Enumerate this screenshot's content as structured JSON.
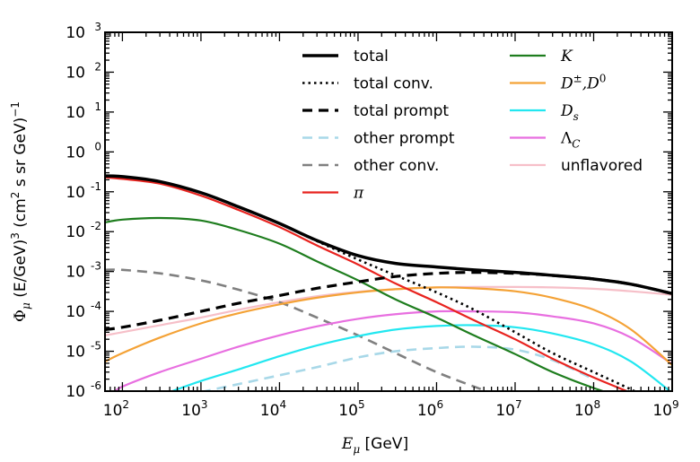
{
  "chart_data": {
    "type": "line",
    "xlabel_math": "E",
    "xlabel_math_sub": "μ",
    "xlabel_unit": " [GeV]",
    "ylabel_phi": "Φ",
    "ylabel_phi_sub": "μ",
    "ylabel_part1": " (E/GeV)",
    "ylabel_part1_sup": "3",
    "ylabel_part2": " (cm",
    "ylabel_part2_sup": "2",
    "ylabel_part3": " s sr GeV)",
    "ylabel_part3_sup": "−1",
    "x_scale": "log",
    "y_scale": "log",
    "xlim": [
      60,
      1000000000
    ],
    "ylim": [
      1e-06,
      1000
    ],
    "grid": false,
    "legend_position": "top-right, two columns",
    "x_ticks": [
      {
        "value": 100,
        "base": "10",
        "exp": "2"
      },
      {
        "value": 1000,
        "base": "10",
        "exp": "3"
      },
      {
        "value": 10000,
        "base": "10",
        "exp": "4"
      },
      {
        "value": 100000,
        "base": "10",
        "exp": "5"
      },
      {
        "value": 1000000,
        "base": "10",
        "exp": "6"
      },
      {
        "value": 10000000,
        "base": "10",
        "exp": "7"
      },
      {
        "value": 100000000,
        "base": "10",
        "exp": "8"
      },
      {
        "value": 1000000000,
        "base": "10",
        "exp": "9"
      }
    ],
    "y_ticks": [
      {
        "value": 1e-06,
        "base": "10",
        "exp": "-6"
      },
      {
        "value": 1e-05,
        "base": "10",
        "exp": "-5"
      },
      {
        "value": 0.0001,
        "base": "10",
        "exp": "-4"
      },
      {
        "value": 0.001,
        "base": "10",
        "exp": "-3"
      },
      {
        "value": 0.01,
        "base": "10",
        "exp": "-2"
      },
      {
        "value": 0.1,
        "base": "10",
        "exp": "-1"
      },
      {
        "value": 1,
        "base": "10",
        "exp": "0"
      },
      {
        "value": 10,
        "base": "10",
        "exp": "1"
      },
      {
        "value": 100,
        "base": "10",
        "exp": "2"
      },
      {
        "value": 1000,
        "base": "10",
        "exp": "3"
      }
    ],
    "series": [
      {
        "name": "total",
        "label_style": "text",
        "color": "#000000",
        "dash": "solid",
        "width": 3.5,
        "x": [
          60,
          100,
          300,
          1000,
          3000,
          10000,
          30000,
          100000,
          300000,
          1000000,
          3000000,
          10000000,
          30000000,
          100000000,
          300000000,
          1000000000
        ],
        "y": [
          0.25,
          0.24,
          0.18,
          0.095,
          0.042,
          0.016,
          0.006,
          0.0025,
          0.0016,
          0.0013,
          0.0011,
          0.00095,
          0.0008,
          0.00065,
          0.00048,
          0.00028
        ]
      },
      {
        "name": "total conv.",
        "label_style": "text",
        "color": "#000000",
        "dash": "dotted",
        "width": 2.6,
        "x": [
          10000,
          30000,
          100000,
          300000,
          1000000,
          3000000,
          10000000,
          30000000,
          100000000,
          300000000,
          600000000
        ],
        "y": [
          0.016,
          0.0058,
          0.002,
          0.0008,
          0.0003,
          0.00011,
          3e-05,
          9e-06,
          3e-06,
          1.1e-06,
          5.5e-07
        ]
      },
      {
        "name": "total prompt",
        "label_style": "text",
        "color": "#000000",
        "dash": "dashed",
        "width": 3.2,
        "x": [
          60,
          100,
          300,
          1000,
          3000,
          10000,
          30000,
          100000,
          300000,
          1000000,
          3000000,
          10000000,
          30000000,
          100000000,
          300000000,
          1000000000
        ],
        "y": [
          3.5e-05,
          4e-05,
          6e-05,
          0.0001,
          0.00016,
          0.00025,
          0.00038,
          0.00055,
          0.00075,
          0.0009,
          0.00095,
          0.0009,
          0.0008,
          0.00065,
          0.00048,
          0.00028
        ]
      },
      {
        "name": "other prompt",
        "label_style": "text",
        "color": "#a8d8e8",
        "dash": "dashed",
        "width": 2.6,
        "x": [
          1000,
          3000,
          10000,
          30000,
          100000,
          300000,
          1000000,
          3000000,
          10000000,
          30000000,
          100000000
        ],
        "y": [
          9.5e-07,
          1.5e-06,
          2.5e-06,
          4e-06,
          7e-06,
          1e-05,
          1.2e-05,
          1.3e-05,
          1.1e-05,
          6e-06,
          2e-06
        ]
      },
      {
        "name": "other conv.",
        "label_style": "text",
        "color": "#808080",
        "dash": "dashed",
        "width": 2.6,
        "x": [
          60,
          100,
          300,
          1000,
          3000,
          10000,
          30000,
          100000,
          300000,
          1000000,
          3000000,
          6000000
        ],
        "y": [
          0.0011,
          0.0011,
          0.0009,
          0.0006,
          0.00035,
          0.00017,
          7e-05,
          2.5e-05,
          9e-06,
          3e-06,
          1.3e-06,
          8e-07
        ]
      },
      {
        "name": "π",
        "label_style": "math",
        "color": "#e8231f",
        "dash": "solid",
        "width": 2.2,
        "x": [
          60,
          100,
          300,
          1000,
          3000,
          10000,
          30000,
          100000,
          300000,
          1000000,
          3000000,
          10000000,
          30000000,
          100000000,
          300000000,
          800000000
        ],
        "y": [
          0.23,
          0.21,
          0.16,
          0.08,
          0.035,
          0.013,
          0.0045,
          0.0015,
          0.0005,
          0.00017,
          6e-05,
          2e-05,
          6.5e-06,
          2.2e-06,
          9e-07,
          4e-07
        ]
      },
      {
        "name": "K",
        "label_style": "math",
        "color": "#1e7d1e",
        "dash": "solid",
        "width": 2.2,
        "x": [
          60,
          100,
          300,
          1000,
          3000,
          10000,
          30000,
          100000,
          300000,
          1000000,
          3000000,
          10000000,
          30000000,
          100000000,
          300000000
        ],
        "y": [
          0.017,
          0.02,
          0.022,
          0.019,
          0.011,
          0.005,
          0.0018,
          0.0006,
          0.0002,
          7e-05,
          2.5e-05,
          8.5e-06,
          3e-06,
          1.2e-06,
          6e-07
        ]
      },
      {
        "name": "D±,D0",
        "label_style": "math",
        "color": "#f4a236",
        "dash": "solid",
        "width": 2.2,
        "x": [
          60,
          100,
          300,
          1000,
          3000,
          10000,
          30000,
          100000,
          300000,
          1000000,
          3000000,
          10000000,
          30000000,
          100000000,
          300000000,
          1000000000
        ],
        "y": [
          5.5e-06,
          9e-06,
          2.2e-05,
          5e-05,
          9e-05,
          0.00015,
          0.00022,
          0.0003,
          0.00036,
          0.0004,
          0.00038,
          0.00032,
          0.00022,
          0.00011,
          3.5e-05,
          4.5e-06
        ]
      },
      {
        "name": "Ds",
        "label_style": "math",
        "color": "#22e7f0",
        "dash": "solid",
        "width": 2.2,
        "x": [
          400,
          1000,
          3000,
          10000,
          30000,
          100000,
          300000,
          1000000,
          3000000,
          10000000,
          30000000,
          100000000,
          300000000,
          1000000000
        ],
        "y": [
          9.5e-07,
          1.8e-06,
          3.5e-06,
          7.5e-06,
          1.4e-05,
          2.4e-05,
          3.5e-05,
          4.3e-05,
          4.5e-05,
          4e-05,
          2.8e-05,
          1.5e-05,
          5.5e-06,
          9e-07
        ]
      },
      {
        "name": "ΛC",
        "label_style": "math",
        "color": "#e86fe0",
        "dash": "solid",
        "width": 2.2,
        "x": [
          80,
          100,
          300,
          1000,
          3000,
          10000,
          30000,
          100000,
          300000,
          1000000,
          3000000,
          10000000,
          30000000,
          100000000,
          300000000,
          1000000000
        ],
        "y": [
          9.5e-07,
          1.3e-06,
          3e-06,
          6.5e-06,
          1.3e-05,
          2.5e-05,
          4.2e-05,
          6.5e-05,
          8.5e-05,
          0.0001,
          0.0001,
          9.5e-05,
          7.5e-05,
          5e-05,
          2.2e-05,
          4.8e-06
        ]
      },
      {
        "name": "unflavored",
        "label_style": "text",
        "color": "#f6bfc8",
        "dash": "solid",
        "width": 2.2,
        "x": [
          60,
          100,
          300,
          1000,
          3000,
          10000,
          30000,
          100000,
          300000,
          1000000,
          3000000,
          10000000,
          30000000,
          100000000,
          300000000,
          1000000000
        ],
        "y": [
          2.5e-05,
          3e-05,
          4.5e-05,
          7e-05,
          0.00011,
          0.00017,
          0.00024,
          0.00031,
          0.00036,
          0.0004,
          0.00041,
          0.00041,
          0.0004,
          0.00037,
          0.00032,
          0.00026
        ]
      }
    ]
  }
}
